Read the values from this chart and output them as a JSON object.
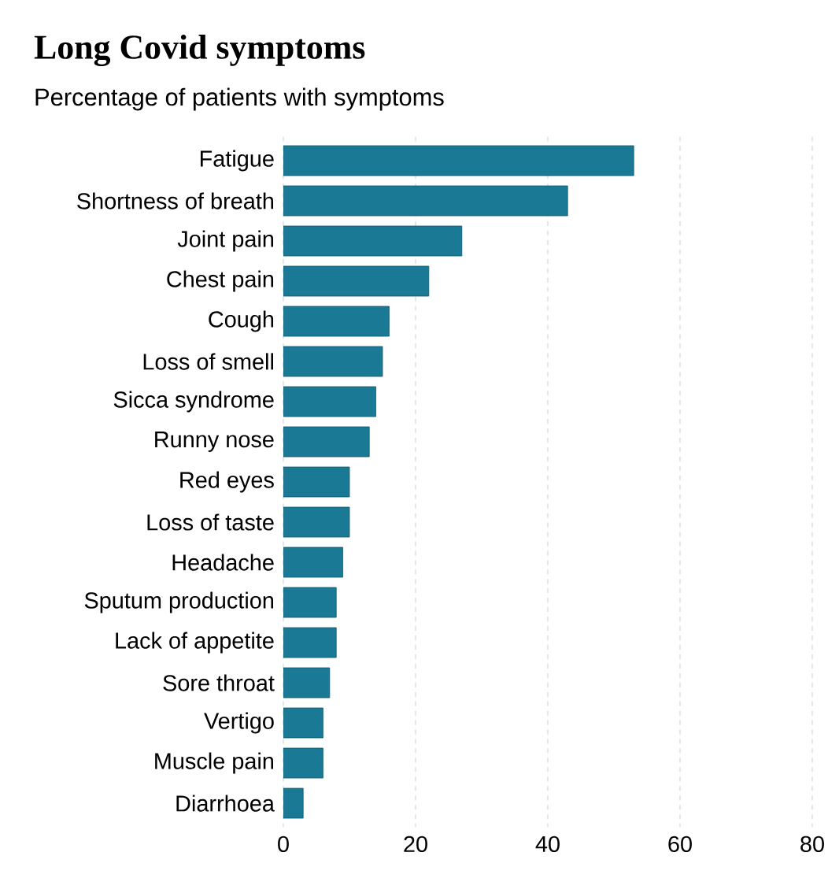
{
  "chart_data": {
    "type": "bar",
    "orientation": "horizontal",
    "title": "Long Covid symptoms",
    "subtitle": "Percentage of patients with symptoms",
    "categories": [
      "Fatigue",
      "Shortness of breath",
      "Joint pain",
      "Chest pain",
      "Cough",
      "Loss of smell",
      "Sicca syndrome",
      "Runny nose",
      "Red eyes",
      "Loss of taste",
      "Headache",
      "Sputum production",
      "Lack of appetite",
      "Sore throat",
      "Vertigo",
      "Muscle pain",
      "Diarrhoea"
    ],
    "values": [
      53,
      43,
      27,
      22,
      16,
      15,
      14,
      13,
      10,
      10,
      9,
      8,
      8,
      7,
      6,
      6,
      3
    ],
    "color": "#1a7a96",
    "xlim": [
      0,
      80
    ],
    "xticks": [
      0,
      20,
      40,
      60,
      80
    ],
    "grid": "x"
  }
}
